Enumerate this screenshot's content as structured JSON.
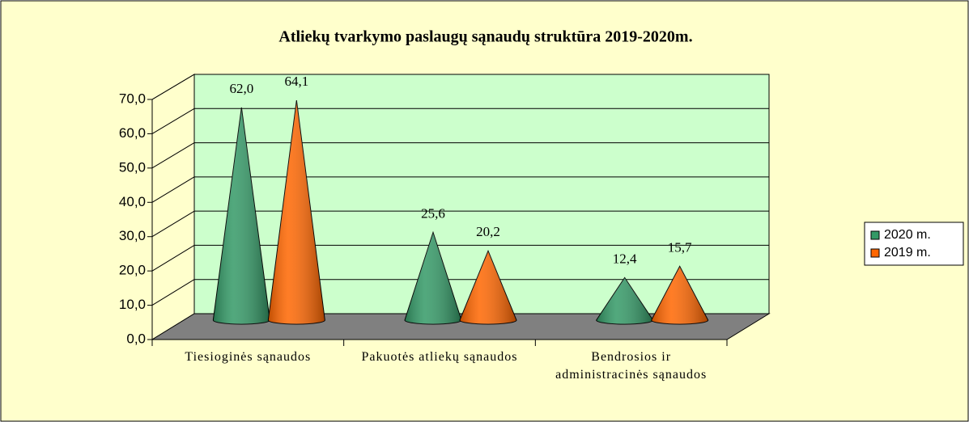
{
  "chart_data": {
    "type": "cone",
    "title": "Atliekų tvarkymo paslaugų sąnaudų struktūra 2019-2020m.",
    "categories": [
      "Tiesioginės sąnaudos",
      "Pakuotės atliekų sąnaudos",
      "Bendrosios ir administracinės sąnaudos"
    ],
    "series": [
      {
        "name": "2020 m.",
        "color": "#339966",
        "values": [
          62.0,
          25.6,
          12.4
        ],
        "value_labels": [
          "62,0",
          "25,6",
          "12,4"
        ]
      },
      {
        "name": "2019 m.",
        "color": "#FF6600",
        "values": [
          64.1,
          20.2,
          15.7
        ],
        "value_labels": [
          "64,1",
          "20,2",
          "15,7"
        ]
      }
    ],
    "ylim": [
      0,
      70
    ],
    "yticks": [
      {
        "value": 0,
        "label": "0,0"
      },
      {
        "value": 10,
        "label": "10,0"
      },
      {
        "value": 20,
        "label": "20,0"
      },
      {
        "value": 30,
        "label": "30,0"
      },
      {
        "value": 40,
        "label": "40,0"
      },
      {
        "value": 50,
        "label": "50,0"
      },
      {
        "value": 60,
        "label": "60,0"
      },
      {
        "value": 70,
        "label": "70,0"
      }
    ],
    "grid": true,
    "legend": "right"
  }
}
